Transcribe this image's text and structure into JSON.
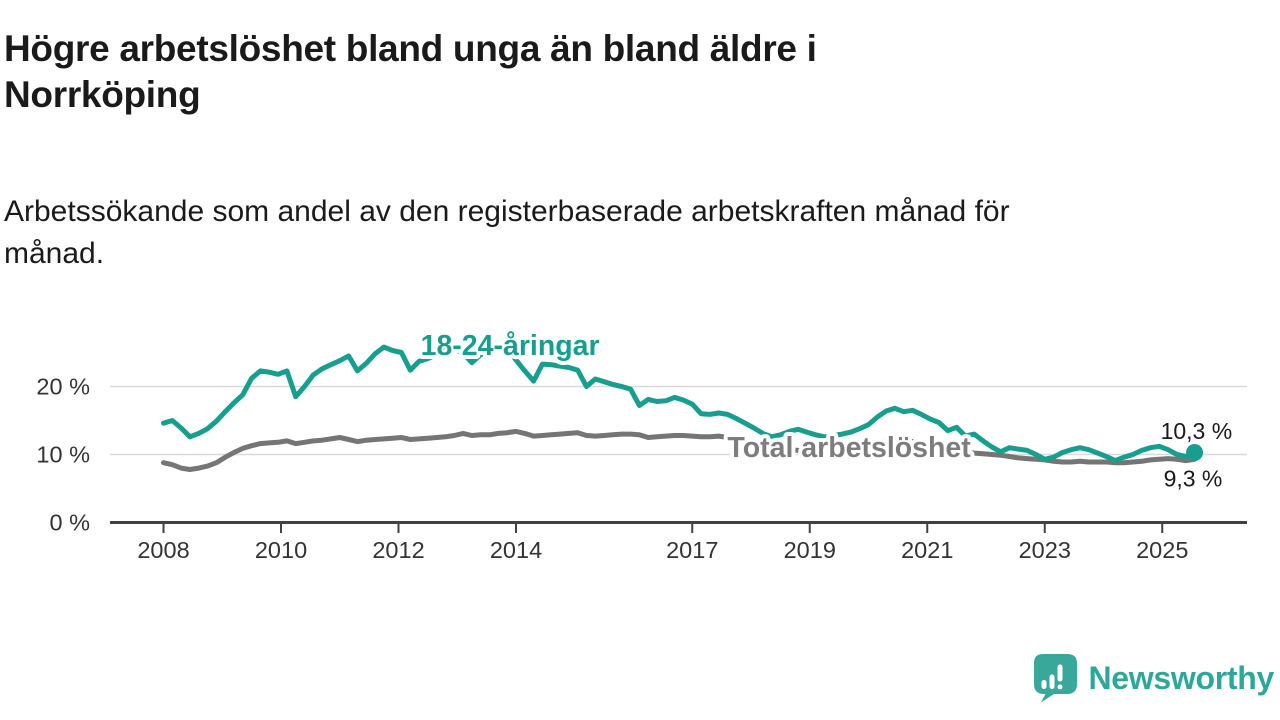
{
  "header": {
    "title": "Högre arbetslöshet bland unga än bland äldre i\nNorrköping",
    "subtitle": "Arbetssökande som andel av den registerbaserade arbetskraften månad för\nmånad."
  },
  "footer": {
    "brand": "Newsworthy"
  },
  "colors": {
    "accent_teal": "#189e8e",
    "series_gray": "#757575",
    "label_gray": "#7d7d7d",
    "grid": "#d9d9d9",
    "axis": "#414141",
    "tick_text": "#333333",
    "text": "#1a1a1a",
    "logo_teal": "#3aa79b",
    "background": "#ffffff"
  },
  "chart_data": {
    "type": "line",
    "title": "Högre arbetslöshet bland unga än bland äldre i Norrköping",
    "subtitle": "Arbetssökande som andel av den registerbaserade arbetskraften månad för månad.",
    "xlabel": "",
    "ylabel": "",
    "y_unit": "%",
    "x_unit": "year",
    "xlim": [
      2007.1,
      2026.4
    ],
    "ylim": [
      0,
      27
    ],
    "grid": "horizontal",
    "legend_position": "inline-labels",
    "yticks": [
      {
        "value": 0,
        "label": "0 %"
      },
      {
        "value": 10,
        "label": "10 %"
      },
      {
        "value": 20,
        "label": "20 %"
      }
    ],
    "xticks": [
      {
        "value": 2008,
        "label": "2008"
      },
      {
        "value": 2010,
        "label": "2010"
      },
      {
        "value": 2012,
        "label": "2012"
      },
      {
        "value": 2014,
        "label": "2014"
      },
      {
        "value": 2017,
        "label": "2017"
      },
      {
        "value": 2019,
        "label": "2019"
      },
      {
        "value": 2021,
        "label": "2021"
      },
      {
        "value": 2023,
        "label": "2023"
      },
      {
        "value": 2025,
        "label": "2025"
      }
    ],
    "series": [
      {
        "id": "youth",
        "name": "18-24-åringar",
        "color": "#189e8e",
        "end_label": "10,3 %",
        "end_value": 10.3,
        "end_marker": true,
        "label_pos": {
          "x": 2013.9,
          "y": 24.6
        },
        "points": [
          [
            2008.0,
            14.6
          ],
          [
            2008.15,
            15.0
          ],
          [
            2008.3,
            13.9
          ],
          [
            2008.45,
            12.6
          ],
          [
            2008.6,
            13.1
          ],
          [
            2008.75,
            13.8
          ],
          [
            2008.9,
            14.9
          ],
          [
            2009.05,
            16.3
          ],
          [
            2009.2,
            17.6
          ],
          [
            2009.35,
            18.8
          ],
          [
            2009.5,
            21.2
          ],
          [
            2009.65,
            22.3
          ],
          [
            2009.8,
            22.1
          ],
          [
            2009.95,
            21.8
          ],
          [
            2010.1,
            22.3
          ],
          [
            2010.25,
            18.5
          ],
          [
            2010.4,
            20.0
          ],
          [
            2010.55,
            21.7
          ],
          [
            2010.7,
            22.6
          ],
          [
            2010.85,
            23.2
          ],
          [
            2011.0,
            23.8
          ],
          [
            2011.15,
            24.5
          ],
          [
            2011.3,
            22.3
          ],
          [
            2011.45,
            23.4
          ],
          [
            2011.6,
            24.8
          ],
          [
            2011.75,
            25.8
          ],
          [
            2011.9,
            25.3
          ],
          [
            2012.05,
            25.0
          ],
          [
            2012.2,
            22.4
          ],
          [
            2012.35,
            23.7
          ],
          [
            2012.5,
            24.1
          ],
          [
            2012.65,
            24.7
          ],
          [
            2012.8,
            26.2
          ],
          [
            2012.95,
            25.5
          ],
          [
            2013.1,
            24.9
          ],
          [
            2013.25,
            23.5
          ],
          [
            2013.4,
            24.7
          ],
          [
            2013.55,
            25.1
          ],
          [
            2013.7,
            25.4
          ],
          [
            2013.85,
            25.7
          ],
          [
            2014.0,
            23.9
          ],
          [
            2014.15,
            22.3
          ],
          [
            2014.3,
            20.8
          ],
          [
            2014.45,
            23.3
          ],
          [
            2014.6,
            23.2
          ],
          [
            2014.75,
            23.0
          ],
          [
            2014.9,
            22.8
          ],
          [
            2015.05,
            22.4
          ],
          [
            2015.2,
            20.0
          ],
          [
            2015.35,
            21.1
          ],
          [
            2015.5,
            20.7
          ],
          [
            2015.65,
            20.3
          ],
          [
            2015.8,
            20.0
          ],
          [
            2015.95,
            19.6
          ],
          [
            2016.1,
            17.2
          ],
          [
            2016.25,
            18.1
          ],
          [
            2016.4,
            17.8
          ],
          [
            2016.55,
            17.9
          ],
          [
            2016.7,
            18.4
          ],
          [
            2016.85,
            18.0
          ],
          [
            2017.0,
            17.4
          ],
          [
            2017.15,
            16.0
          ],
          [
            2017.3,
            15.9
          ],
          [
            2017.45,
            16.1
          ],
          [
            2017.6,
            15.9
          ],
          [
            2017.75,
            15.3
          ],
          [
            2017.9,
            14.6
          ],
          [
            2018.05,
            13.9
          ],
          [
            2018.2,
            13.1
          ],
          [
            2018.35,
            12.6
          ],
          [
            2018.5,
            12.9
          ],
          [
            2018.65,
            13.4
          ],
          [
            2018.8,
            13.7
          ],
          [
            2018.95,
            13.3
          ],
          [
            2019.1,
            12.9
          ],
          [
            2019.25,
            12.6
          ],
          [
            2019.4,
            12.8
          ],
          [
            2019.55,
            13.0
          ],
          [
            2019.7,
            13.3
          ],
          [
            2019.85,
            13.8
          ],
          [
            2020.0,
            14.4
          ],
          [
            2020.15,
            15.5
          ],
          [
            2020.3,
            16.4
          ],
          [
            2020.45,
            16.8
          ],
          [
            2020.6,
            16.3
          ],
          [
            2020.75,
            16.5
          ],
          [
            2020.9,
            15.9
          ],
          [
            2021.05,
            15.2
          ],
          [
            2021.2,
            14.7
          ],
          [
            2021.35,
            13.5
          ],
          [
            2021.5,
            14.0
          ],
          [
            2021.65,
            12.7
          ],
          [
            2021.8,
            13.0
          ],
          [
            2021.95,
            12.0
          ],
          [
            2022.1,
            11.1
          ],
          [
            2022.25,
            10.4
          ],
          [
            2022.4,
            11.0
          ],
          [
            2022.55,
            10.8
          ],
          [
            2022.7,
            10.6
          ],
          [
            2022.85,
            10.0
          ],
          [
            2023.0,
            9.3
          ],
          [
            2023.15,
            9.6
          ],
          [
            2023.3,
            10.3
          ],
          [
            2023.45,
            10.7
          ],
          [
            2023.6,
            11.0
          ],
          [
            2023.75,
            10.7
          ],
          [
            2023.9,
            10.2
          ],
          [
            2024.05,
            9.7
          ],
          [
            2024.2,
            9.1
          ],
          [
            2024.35,
            9.6
          ],
          [
            2024.5,
            10.0
          ],
          [
            2024.65,
            10.6
          ],
          [
            2024.8,
            11.0
          ],
          [
            2024.95,
            11.2
          ],
          [
            2025.1,
            10.7
          ],
          [
            2025.25,
            10.0
          ],
          [
            2025.4,
            9.7
          ],
          [
            2025.55,
            10.3
          ]
        ]
      },
      {
        "id": "total",
        "name": "Total arbetslöshet",
        "color": "#757575",
        "label_color": "#7d7d7d",
        "end_label": "9,3 %",
        "end_value": 9.3,
        "end_marker": false,
        "label_pos": {
          "x": 2019.67,
          "y": 9.63
        },
        "points": [
          [
            2008.0,
            8.8
          ],
          [
            2008.15,
            8.5
          ],
          [
            2008.3,
            8.0
          ],
          [
            2008.45,
            7.8
          ],
          [
            2008.6,
            8.0
          ],
          [
            2008.75,
            8.3
          ],
          [
            2008.9,
            8.8
          ],
          [
            2009.05,
            9.6
          ],
          [
            2009.2,
            10.3
          ],
          [
            2009.35,
            10.9
          ],
          [
            2009.5,
            11.3
          ],
          [
            2009.65,
            11.6
          ],
          [
            2009.8,
            11.7
          ],
          [
            2009.95,
            11.8
          ],
          [
            2010.1,
            12.0
          ],
          [
            2010.25,
            11.6
          ],
          [
            2010.4,
            11.8
          ],
          [
            2010.55,
            12.0
          ],
          [
            2010.7,
            12.1
          ],
          [
            2010.85,
            12.3
          ],
          [
            2011.0,
            12.5
          ],
          [
            2011.15,
            12.2
          ],
          [
            2011.3,
            11.9
          ],
          [
            2011.45,
            12.1
          ],
          [
            2011.6,
            12.2
          ],
          [
            2011.75,
            12.3
          ],
          [
            2011.9,
            12.4
          ],
          [
            2012.05,
            12.5
          ],
          [
            2012.2,
            12.2
          ],
          [
            2012.35,
            12.3
          ],
          [
            2012.5,
            12.4
          ],
          [
            2012.65,
            12.5
          ],
          [
            2012.8,
            12.6
          ],
          [
            2012.95,
            12.8
          ],
          [
            2013.1,
            13.1
          ],
          [
            2013.25,
            12.8
          ],
          [
            2013.4,
            12.9
          ],
          [
            2013.55,
            12.9
          ],
          [
            2013.7,
            13.1
          ],
          [
            2013.85,
            13.2
          ],
          [
            2014.0,
            13.4
          ],
          [
            2014.15,
            13.1
          ],
          [
            2014.3,
            12.7
          ],
          [
            2014.45,
            12.8
          ],
          [
            2014.6,
            12.9
          ],
          [
            2014.75,
            13.0
          ],
          [
            2014.9,
            13.1
          ],
          [
            2015.05,
            13.2
          ],
          [
            2015.2,
            12.8
          ],
          [
            2015.35,
            12.7
          ],
          [
            2015.5,
            12.8
          ],
          [
            2015.65,
            12.9
          ],
          [
            2015.8,
            13.0
          ],
          [
            2015.95,
            13.0
          ],
          [
            2016.1,
            12.9
          ],
          [
            2016.25,
            12.5
          ],
          [
            2016.4,
            12.6
          ],
          [
            2016.55,
            12.7
          ],
          [
            2016.7,
            12.8
          ],
          [
            2016.85,
            12.8
          ],
          [
            2017.0,
            12.7
          ],
          [
            2017.15,
            12.6
          ],
          [
            2017.3,
            12.6
          ],
          [
            2017.45,
            12.7
          ],
          [
            2017.6,
            12.5
          ],
          [
            2017.75,
            12.3
          ],
          [
            2017.9,
            12.0
          ],
          [
            2018.05,
            11.7
          ],
          [
            2018.2,
            11.4
          ],
          [
            2018.35,
            11.1
          ],
          [
            2018.5,
            10.9
          ],
          [
            2018.65,
            10.7
          ],
          [
            2018.8,
            10.6
          ],
          [
            2018.95,
            10.5
          ],
          [
            2019.1,
            10.3
          ],
          [
            2019.25,
            10.2
          ],
          [
            2019.4,
            10.2
          ],
          [
            2019.55,
            10.3
          ],
          [
            2019.7,
            10.5
          ],
          [
            2019.85,
            10.7
          ],
          [
            2020.0,
            11.1
          ],
          [
            2020.15,
            11.6
          ],
          [
            2020.3,
            12.0
          ],
          [
            2020.45,
            12.2
          ],
          [
            2020.6,
            12.1
          ],
          [
            2020.75,
            11.9
          ],
          [
            2020.9,
            11.6
          ],
          [
            2021.05,
            11.4
          ],
          [
            2021.2,
            11.1
          ],
          [
            2021.35,
            10.9
          ],
          [
            2021.5,
            10.6
          ],
          [
            2021.65,
            10.4
          ],
          [
            2021.8,
            10.2
          ],
          [
            2021.95,
            10.1
          ],
          [
            2022.1,
            10.0
          ],
          [
            2022.25,
            9.9
          ],
          [
            2022.4,
            9.7
          ],
          [
            2022.55,
            9.5
          ],
          [
            2022.7,
            9.4
          ],
          [
            2022.85,
            9.3
          ],
          [
            2023.0,
            9.2
          ],
          [
            2023.15,
            9.0
          ],
          [
            2023.3,
            8.9
          ],
          [
            2023.45,
            8.9
          ],
          [
            2023.6,
            9.0
          ],
          [
            2023.75,
            8.9
          ],
          [
            2023.9,
            8.9
          ],
          [
            2024.05,
            8.9
          ],
          [
            2024.2,
            8.8
          ],
          [
            2024.35,
            8.8
          ],
          [
            2024.5,
            8.9
          ],
          [
            2024.65,
            9.0
          ],
          [
            2024.8,
            9.2
          ],
          [
            2024.95,
            9.3
          ],
          [
            2025.1,
            9.4
          ],
          [
            2025.25,
            9.3
          ],
          [
            2025.4,
            9.1
          ],
          [
            2025.55,
            9.3
          ]
        ]
      }
    ]
  }
}
